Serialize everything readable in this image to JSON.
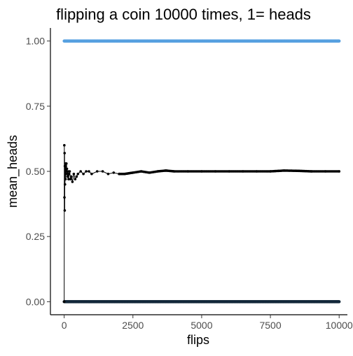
{
  "chart_data": {
    "type": "line",
    "title": "flipping a coin 10000 times, 1= heads",
    "xlabel": "flips",
    "ylabel": "mean_heads",
    "xlim": [
      -500,
      10300
    ],
    "ylim": [
      -0.05,
      1.05
    ],
    "x_ticks": [
      0,
      2500,
      5000,
      7500,
      10000
    ],
    "x_tick_labels": [
      "0",
      "2500",
      "5000",
      "7500",
      "10000"
    ],
    "y_ticks": [
      0.0,
      0.25,
      0.5,
      0.75,
      1.0
    ],
    "y_tick_labels": [
      "0.00",
      "0.25",
      "0.50",
      "0.75",
      "1.00"
    ],
    "grid": false,
    "series": [
      {
        "kind": "points",
        "color": "#56a0e0",
        "y": 1.0,
        "x_range": [
          0,
          10000
        ]
      },
      {
        "kind": "points",
        "color": "#13283a",
        "y": 0.0,
        "x_range": [
          0,
          10000
        ]
      },
      {
        "kind": "line+points",
        "color": "#000000",
        "x": [
          1,
          5,
          10,
          15,
          20,
          25,
          30,
          40,
          50,
          60,
          70,
          80,
          90,
          100,
          120,
          140,
          160,
          180,
          200,
          230,
          260,
          300,
          350,
          400,
          450,
          500,
          600,
          700,
          800,
          900,
          1000,
          1200,
          1400,
          1600,
          1800,
          2000,
          2200,
          2500,
          2800,
          3100,
          3400,
          3700,
          4000,
          4500,
          5000,
          5500,
          6000,
          6500,
          7000,
          7500,
          8000,
          8500,
          9000,
          9500,
          10000
        ],
        "y": [
          0.0,
          0.6,
          0.4,
          0.57,
          0.35,
          0.52,
          0.45,
          0.53,
          0.47,
          0.52,
          0.49,
          0.53,
          0.5,
          0.51,
          0.48,
          0.5,
          0.47,
          0.49,
          0.5,
          0.47,
          0.48,
          0.46,
          0.49,
          0.47,
          0.48,
          0.49,
          0.5,
          0.49,
          0.5,
          0.5,
          0.49,
          0.5,
          0.5,
          0.49,
          0.495,
          0.49,
          0.49,
          0.495,
          0.5,
          0.495,
          0.5,
          0.503,
          0.5,
          0.5,
          0.5,
          0.5,
          0.5,
          0.5,
          0.5,
          0.5,
          0.503,
          0.502,
          0.5,
          0.5,
          0.5
        ]
      }
    ]
  }
}
